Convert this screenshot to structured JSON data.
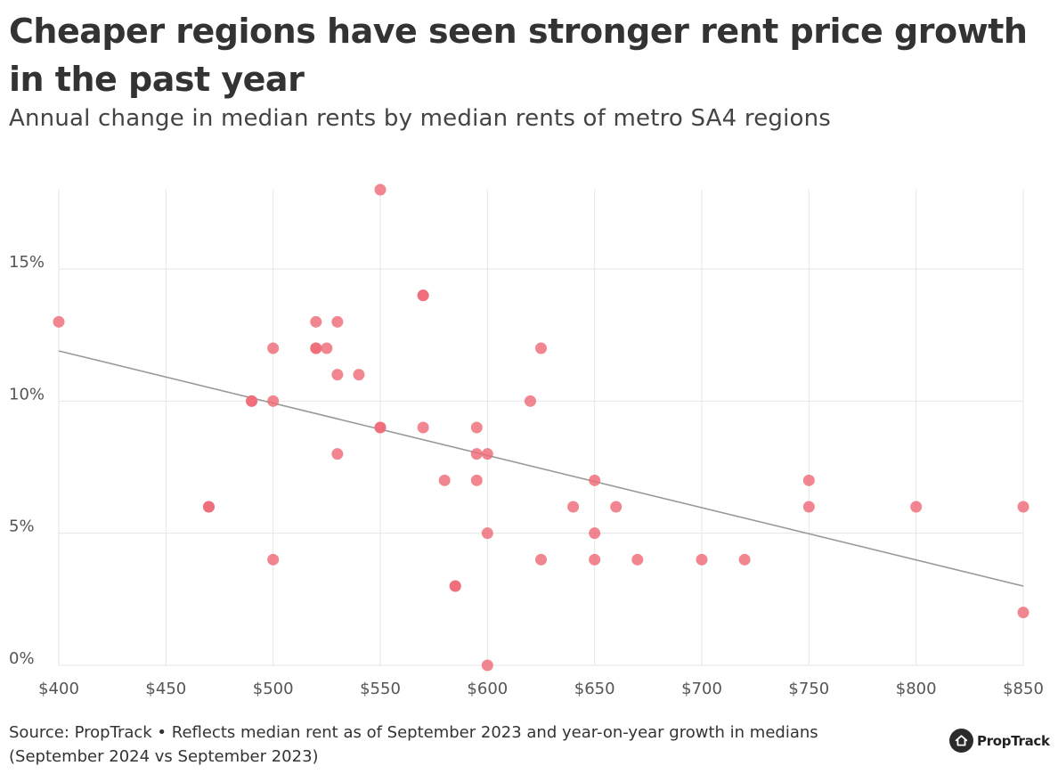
{
  "header": {
    "title": "Cheaper regions have seen stronger rent price growth in the past year",
    "subtitle": "Annual change in median rents by median rents of metro SA4 regions"
  },
  "footer": {
    "source": "Source: PropTrack • Reflects median rent as of September 2023 and year-on-year growth in medians (September 2024 vs September 2023)"
  },
  "brand": {
    "name": "PropTrack",
    "icon": "house-icon"
  },
  "colors": {
    "points": "#ee6b77",
    "trend": "#999999",
    "grid": "#e6e6e6"
  },
  "chart_data": {
    "type": "scatter",
    "title": "Cheaper regions have seen stronger rent price growth in the past year",
    "subtitle": "Annual change in median rents by median rents of metro SA4 regions",
    "xlabel": "",
    "ylabel": "",
    "xlim": [
      400,
      850
    ],
    "ylim": [
      0,
      18
    ],
    "grid": true,
    "x_ticks": [
      400,
      450,
      500,
      550,
      600,
      650,
      700,
      750,
      800,
      850
    ],
    "x_tick_labels": [
      "$400",
      "$450",
      "$500",
      "$550",
      "$600",
      "$650",
      "$700",
      "$750",
      "$800",
      "$850"
    ],
    "y_ticks": [
      0,
      5,
      10,
      15
    ],
    "y_tick_labels": [
      "0%",
      "5%",
      "10%",
      "15%"
    ],
    "series": [
      {
        "name": "Metro SA4 regions",
        "points": [
          {
            "x": 400,
            "y": 13
          },
          {
            "x": 470,
            "y": 6
          },
          {
            "x": 470,
            "y": 6
          },
          {
            "x": 490,
            "y": 10
          },
          {
            "x": 490,
            "y": 10
          },
          {
            "x": 500,
            "y": 12
          },
          {
            "x": 500,
            "y": 10
          },
          {
            "x": 500,
            "y": 4
          },
          {
            "x": 520,
            "y": 13
          },
          {
            "x": 520,
            "y": 12
          },
          {
            "x": 520,
            "y": 12
          },
          {
            "x": 525,
            "y": 12
          },
          {
            "x": 530,
            "y": 13
          },
          {
            "x": 530,
            "y": 11
          },
          {
            "x": 530,
            "y": 8
          },
          {
            "x": 540,
            "y": 11
          },
          {
            "x": 550,
            "y": 18
          },
          {
            "x": 550,
            "y": 9
          },
          {
            "x": 550,
            "y": 9
          },
          {
            "x": 570,
            "y": 14
          },
          {
            "x": 570,
            "y": 14
          },
          {
            "x": 570,
            "y": 9
          },
          {
            "x": 580,
            "y": 7
          },
          {
            "x": 585,
            "y": 3
          },
          {
            "x": 585,
            "y": 3
          },
          {
            "x": 595,
            "y": 9
          },
          {
            "x": 595,
            "y": 8
          },
          {
            "x": 595,
            "y": 7
          },
          {
            "x": 600,
            "y": 8
          },
          {
            "x": 600,
            "y": 5
          },
          {
            "x": 600,
            "y": 0
          },
          {
            "x": 620,
            "y": 10
          },
          {
            "x": 625,
            "y": 12
          },
          {
            "x": 625,
            "y": 4
          },
          {
            "x": 640,
            "y": 6
          },
          {
            "x": 650,
            "y": 7
          },
          {
            "x": 650,
            "y": 5
          },
          {
            "x": 650,
            "y": 4
          },
          {
            "x": 660,
            "y": 6
          },
          {
            "x": 670,
            "y": 4
          },
          {
            "x": 700,
            "y": 4
          },
          {
            "x": 720,
            "y": 4
          },
          {
            "x": 750,
            "y": 7
          },
          {
            "x": 750,
            "y": 6
          },
          {
            "x": 800,
            "y": 6
          },
          {
            "x": 850,
            "y": 6
          },
          {
            "x": 850,
            "y": 2
          }
        ]
      }
    ],
    "trendline": {
      "x": [
        400,
        850
      ],
      "y": [
        11.9,
        3.0
      ]
    }
  }
}
